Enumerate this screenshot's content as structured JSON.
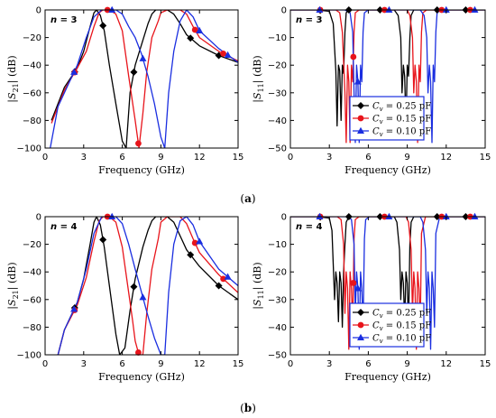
{
  "panels": [
    {
      "label": "(a)"
    },
    {
      "label": "(b)"
    }
  ],
  "legend": {
    "entries": [
      "C_v = 0.25 pF",
      "C_v = 0.15 pF",
      "C_v = 0.10 pF"
    ],
    "parts": [
      {
        "sym": "C",
        "sub": "v",
        "rest": " = 0.25 pF"
      },
      {
        "sym": "C",
        "sub": "v",
        "rest": " = 0.15 pF"
      },
      {
        "sym": "C",
        "sub": "v",
        "rest": " = 0.10 pF"
      }
    ]
  },
  "colors": {
    "s025": "#000000",
    "s015": "#e8141b",
    "s010": "#1a2ee0"
  },
  "chart_data": [
    {
      "type": "line",
      "annotation": "n = 3",
      "xlabel": "Frequency (GHz)",
      "ylabel": "|S21| (dB)",
      "xlim": [
        0,
        15
      ],
      "ylim": [
        -100,
        0
      ],
      "xticks": [
        0,
        3,
        6,
        9,
        12,
        15
      ],
      "yticks": [
        0,
        -20,
        -40,
        -60,
        -80,
        -100
      ],
      "series": [
        {
          "name": "C_v = 0.25 pF",
          "color": "#000000",
          "marker": "diamond",
          "x": [
            0.5,
            1.5,
            2.5,
            3.0,
            3.5,
            3.8,
            4.0,
            4.3,
            4.6,
            5.0,
            5.5,
            6.0,
            6.3,
            6.6,
            7.0,
            7.6,
            8.0,
            8.3,
            8.6,
            9.0,
            9.5,
            10.0,
            10.5,
            11.0,
            12.0,
            13.5,
            15.0
          ],
          "y": [
            -80,
            -56,
            -42,
            -30,
            -12,
            -2,
            0,
            -4,
            -15,
            -40,
            -68,
            -95,
            -100,
            -60,
            -40,
            -22,
            -10,
            -3,
            0,
            0,
            0,
            -3,
            -10,
            -18,
            -26,
            -33,
            -38
          ]
        },
        {
          "name": "C_v = 0.15 pF",
          "color": "#e8141b",
          "marker": "circle",
          "x": [
            0.5,
            1.5,
            2.5,
            3.2,
            3.8,
            4.2,
            4.5,
            5.0,
            5.5,
            6.0,
            6.5,
            7.0,
            7.3,
            7.6,
            7.9,
            8.3,
            8.8,
            9.0,
            9.5,
            10.0,
            10.5,
            11.0,
            11.5,
            12.0,
            13.5,
            15.0
          ],
          "y": [
            -82,
            -58,
            -42,
            -30,
            -12,
            -2,
            0,
            0,
            -3,
            -15,
            -48,
            -80,
            -100,
            -75,
            -45,
            -20,
            -8,
            -2,
            0,
            0,
            0,
            -3,
            -12,
            -20,
            -30,
            -37
          ]
        },
        {
          "name": "C_v = 0.10 pF",
          "color": "#1a2ee0",
          "marker": "triangle",
          "x": [
            0.4,
            1.0,
            2.0,
            2.5,
            3.2,
            3.8,
            4.4,
            5.0,
            5.5,
            6.0,
            6.5,
            7.0,
            7.5,
            8.0,
            8.5,
            9.0,
            9.3,
            9.6,
            10.0,
            10.5,
            11.0,
            11.5,
            12.0,
            13.5,
            15.0
          ],
          "y": [
            -100,
            -70,
            -50,
            -40,
            -20,
            -5,
            0,
            0,
            0,
            -3,
            -12,
            -20,
            -32,
            -48,
            -68,
            -92,
            -100,
            -60,
            -30,
            -8,
            0,
            -5,
            -15,
            -28,
            -38
          ]
        }
      ]
    },
    {
      "type": "line",
      "annotation": "n = 3",
      "xlabel": "Frequency (GHz)",
      "ylabel": "|S11| (dB)",
      "xlim": [
        0,
        15
      ],
      "ylim": [
        -50,
        0
      ],
      "xticks": [
        0,
        3,
        6,
        9,
        12,
        15
      ],
      "yticks": [
        0,
        -10,
        -20,
        -30,
        -40,
        -50
      ],
      "series": [
        {
          "name": "C_v = 0.25 pF",
          "color": "#000000",
          "marker": "diamond",
          "x": [
            0,
            2,
            3.0,
            3.3,
            3.5,
            3.6,
            3.7,
            3.8,
            3.9,
            4.0,
            4.1,
            4.2,
            4.3,
            4.5,
            8.0,
            8.3,
            8.5,
            8.6,
            8.7,
            8.8,
            8.9,
            9.0,
            9.1,
            9.2,
            9.3,
            9.5,
            15
          ],
          "y": [
            0,
            0,
            -0.5,
            -5,
            -22,
            -42,
            -20,
            -22,
            -40,
            -20,
            -23,
            -8,
            -1,
            0,
            0,
            -2,
            -10,
            -30,
            -20,
            -24,
            -42,
            -20,
            -24,
            -10,
            -2,
            0,
            0
          ]
        },
        {
          "name": "C_v = 0.15 pF",
          "color": "#e8141b",
          "marker": "circle",
          "x": [
            0,
            3.5,
            3.8,
            4.0,
            4.2,
            4.3,
            4.4,
            4.5,
            4.6,
            4.7,
            4.8,
            4.9,
            5.0,
            5.3,
            9.0,
            9.2,
            9.4,
            9.5,
            9.6,
            9.7,
            9.8,
            9.9,
            10.0,
            10.1,
            10.2,
            10.5,
            15
          ],
          "y": [
            0,
            0,
            -1,
            -8,
            -30,
            -48,
            -20,
            -26,
            -48,
            -20,
            -26,
            -8,
            -1,
            0,
            0,
            -2,
            -10,
            -30,
            -20,
            -26,
            -48,
            -20,
            -26,
            -8,
            -1,
            0,
            0
          ]
        },
        {
          "name": "C_v = 0.10 pF",
          "color": "#1a2ee0",
          "marker": "triangle",
          "x": [
            0,
            4.2,
            4.6,
            4.8,
            4.9,
            5.0,
            5.1,
            5.2,
            5.3,
            5.4,
            5.5,
            5.6,
            5.7,
            6.0,
            10.0,
            10.3,
            10.5,
            10.6,
            10.7,
            10.8,
            10.9,
            11.0,
            11.1,
            11.2,
            11.3,
            11.6,
            15
          ],
          "y": [
            0,
            0,
            -1,
            -8,
            -30,
            -48,
            -20,
            -26,
            -48,
            -20,
            -26,
            -8,
            -1,
            0,
            0,
            -2,
            -10,
            -30,
            -20,
            -26,
            -48,
            -20,
            -26,
            -8,
            -1,
            0,
            0
          ]
        }
      ]
    },
    {
      "type": "line",
      "annotation": "n = 4",
      "xlabel": "Frequency (GHz)",
      "ylabel": "|S21| (dB)",
      "xlim": [
        0,
        15
      ],
      "ylim": [
        -100,
        0
      ],
      "xticks": [
        0,
        3,
        6,
        9,
        12,
        15
      ],
      "yticks": [
        0,
        -20,
        -40,
        -60,
        -80,
        -100
      ],
      "series": [
        {
          "name": "C_v = 0.25 pF",
          "color": "#000000",
          "marker": "diamond",
          "x": [
            1.0,
            1.5,
            2.5,
            3.0,
            3.5,
            3.8,
            4.0,
            4.3,
            4.6,
            5.0,
            5.5,
            5.8,
            6.2,
            6.6,
            7.0,
            7.6,
            8.0,
            8.3,
            8.6,
            9.0,
            9.5,
            10.0,
            10.5,
            11.0,
            12.0,
            13.5,
            15.0
          ],
          "y": [
            -100,
            -82,
            -62,
            -45,
            -20,
            -4,
            0,
            -6,
            -22,
            -50,
            -85,
            -100,
            -95,
            -68,
            -45,
            -22,
            -10,
            -3,
            0,
            0,
            0,
            -4,
            -14,
            -24,
            -36,
            -50,
            -60
          ]
        },
        {
          "name": "C_v = 0.15 pF",
          "color": "#e8141b",
          "marker": "circle",
          "x": [
            1.0,
            1.5,
            2.5,
            3.2,
            3.8,
            4.2,
            4.5,
            5.0,
            5.5,
            6.0,
            6.5,
            6.8,
            7.0,
            7.3,
            7.6,
            7.9,
            8.3,
            8.8,
            9.0,
            9.5,
            10.0,
            10.5,
            11.0,
            11.5,
            12.0,
            13.5,
            15.0
          ],
          "y": [
            -100,
            -82,
            -64,
            -44,
            -18,
            -3,
            0,
            0,
            -4,
            -22,
            -55,
            -75,
            -90,
            -100,
            -100,
            -70,
            -38,
            -16,
            -4,
            0,
            0,
            0,
            -5,
            -16,
            -26,
            -42,
            -55
          ]
        },
        {
          "name": "C_v = 0.10 pF",
          "color": "#1a2ee0",
          "marker": "triangle",
          "x": [
            1.0,
            1.5,
            2.5,
            3.2,
            3.8,
            4.4,
            5.0,
            5.5,
            6.0,
            6.5,
            7.0,
            7.5,
            8.0,
            8.5,
            9.0,
            9.3,
            9.6,
            10.0,
            10.5,
            11.0,
            11.5,
            12.0,
            13.5,
            15.0
          ],
          "y": [
            -100,
            -82,
            -62,
            -38,
            -12,
            0,
            0,
            0,
            -5,
            -20,
            -38,
            -55,
            -72,
            -88,
            -100,
            -100,
            -55,
            -20,
            -3,
            0,
            -6,
            -18,
            -38,
            -50
          ]
        }
      ]
    },
    {
      "type": "line",
      "annotation": "n = 4",
      "xlabel": "Frequency (GHz)",
      "ylabel": "|S11| (dB)",
      "xlim": [
        0,
        15
      ],
      "ylim": [
        -50,
        0
      ],
      "xticks": [
        0,
        3,
        6,
        9,
        12,
        15
      ],
      "yticks": [
        0,
        -10,
        -20,
        -30,
        -40,
        -50
      ],
      "series": [
        {
          "name": "C_v = 0.25 pF",
          "color": "#000000",
          "marker": "diamond",
          "x": [
            0,
            2,
            3.0,
            3.2,
            3.4,
            3.5,
            3.6,
            3.7,
            3.8,
            3.9,
            4.0,
            4.1,
            4.2,
            4.3,
            4.5,
            8.0,
            8.2,
            8.4,
            8.5,
            8.6,
            8.7,
            8.8,
            8.9,
            9.0,
            9.1,
            9.2,
            9.3,
            9.5,
            15
          ],
          "y": [
            0,
            0,
            -0.5,
            -5,
            -30,
            -20,
            -24,
            -38,
            -20,
            -24,
            -40,
            -20,
            -10,
            -2,
            0,
            0,
            -2,
            -12,
            -30,
            -20,
            -24,
            -38,
            -20,
            -24,
            -40,
            -10,
            -2,
            0,
            0
          ]
        },
        {
          "name": "C_v = 0.15 pF",
          "color": "#e8141b",
          "marker": "circle",
          "x": [
            0,
            3.6,
            3.9,
            4.1,
            4.2,
            4.3,
            4.4,
            4.5,
            4.6,
            4.7,
            4.8,
            4.9,
            5.0,
            5.3,
            8.9,
            9.1,
            9.3,
            9.4,
            9.5,
            9.6,
            9.7,
            9.8,
            9.9,
            10.0,
            10.1,
            10.4,
            15
          ],
          "y": [
            0,
            0,
            -1,
            -10,
            -35,
            -20,
            -26,
            -48,
            -20,
            -26,
            -40,
            -8,
            -1,
            0,
            0,
            -2,
            -12,
            -35,
            -20,
            -26,
            -48,
            -20,
            -26,
            -40,
            -6,
            0,
            0
          ]
        },
        {
          "name": "C_v = 0.10 pF",
          "color": "#1a2ee0",
          "marker": "triangle",
          "x": [
            0,
            4.4,
            4.7,
            4.9,
            5.0,
            5.1,
            5.2,
            5.3,
            5.4,
            5.5,
            5.6,
            5.7,
            5.8,
            6.1,
            10.0,
            10.2,
            10.4,
            10.5,
            10.6,
            10.7,
            10.8,
            10.9,
            11.0,
            11.1,
            11.2,
            11.5,
            15
          ],
          "y": [
            0,
            0,
            -1,
            -10,
            -35,
            -20,
            -26,
            -48,
            -20,
            -26,
            -40,
            -8,
            -1,
            0,
            0,
            -2,
            -12,
            -35,
            -20,
            -26,
            -48,
            -20,
            -26,
            -40,
            -6,
            0,
            0
          ]
        }
      ]
    }
  ]
}
